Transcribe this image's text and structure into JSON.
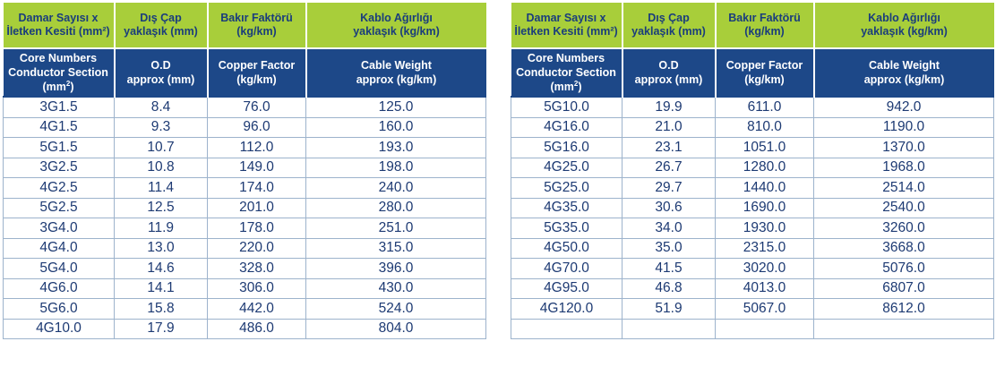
{
  "headers": {
    "tr": {
      "core_line1": "Damar Sayısı x",
      "core_line2": "İletken Kesiti (mm²)",
      "od_line1": "Dış Çap",
      "od_line2": "yaklaşık (mm)",
      "copper_line1": "Bakır Faktörü",
      "copper_line2": "(kg/km)",
      "weight_line1": "Kablo Ağırlığı",
      "weight_line2": "yaklaşık (kg/km)"
    },
    "en": {
      "core_line1": "Core Numbers",
      "core_line2": "Conductor Section (mm",
      "core_sup": "2",
      "core_line2_end": ")",
      "od_line1": "O.D",
      "od_line2": "approx (mm)",
      "copper_line1": "Copper Factor",
      "copper_line2": "(kg/km)",
      "weight_line1": "Cable Weight",
      "weight_line2": "approx (kg/km)"
    }
  },
  "left_rows": [
    [
      "3G1.5",
      "8.4",
      "76.0",
      "125.0"
    ],
    [
      "4G1.5",
      "9.3",
      "96.0",
      "160.0"
    ],
    [
      "5G1.5",
      "10.7",
      "112.0",
      "193.0"
    ],
    [
      "3G2.5",
      "10.8",
      "149.0",
      "198.0"
    ],
    [
      "4G2.5",
      "11.4",
      "174.0",
      "240.0"
    ],
    [
      "5G2.5",
      "12.5",
      "201.0",
      "280.0"
    ],
    [
      "3G4.0",
      "11.9",
      "178.0",
      "251.0"
    ],
    [
      "4G4.0",
      "13.0",
      "220.0",
      "315.0"
    ],
    [
      "5G4.0",
      "14.6",
      "328.0",
      "396.0"
    ],
    [
      "4G6.0",
      "14.1",
      "306.0",
      "430.0"
    ],
    [
      "5G6.0",
      "15.8",
      "442.0",
      "524.0"
    ],
    [
      "4G10.0",
      "17.9",
      "486.0",
      "804.0"
    ]
  ],
  "right_rows": [
    [
      "5G10.0",
      "19.9",
      "611.0",
      "942.0"
    ],
    [
      "4G16.0",
      "21.0",
      "810.0",
      "1190.0"
    ],
    [
      "5G16.0",
      "23.1",
      "1051.0",
      "1370.0"
    ],
    [
      "4G25.0",
      "26.7",
      "1280.0",
      "1968.0"
    ],
    [
      "5G25.0",
      "29.7",
      "1440.0",
      "2514.0"
    ],
    [
      "4G35.0",
      "30.6",
      "1690.0",
      "2540.0"
    ],
    [
      "5G35.0",
      "34.0",
      "1930.0",
      "3260.0"
    ],
    [
      "4G50.0",
      "35.0",
      "2315.0",
      "3668.0"
    ],
    [
      "4G70.0",
      "41.5",
      "3020.0",
      "5076.0"
    ],
    [
      "4G95.0",
      "46.8",
      "4013.0",
      "6807.0"
    ],
    [
      "4G120.0",
      "51.9",
      "5067.0",
      "8612.0"
    ],
    [
      "",
      "",
      "",
      ""
    ]
  ]
}
